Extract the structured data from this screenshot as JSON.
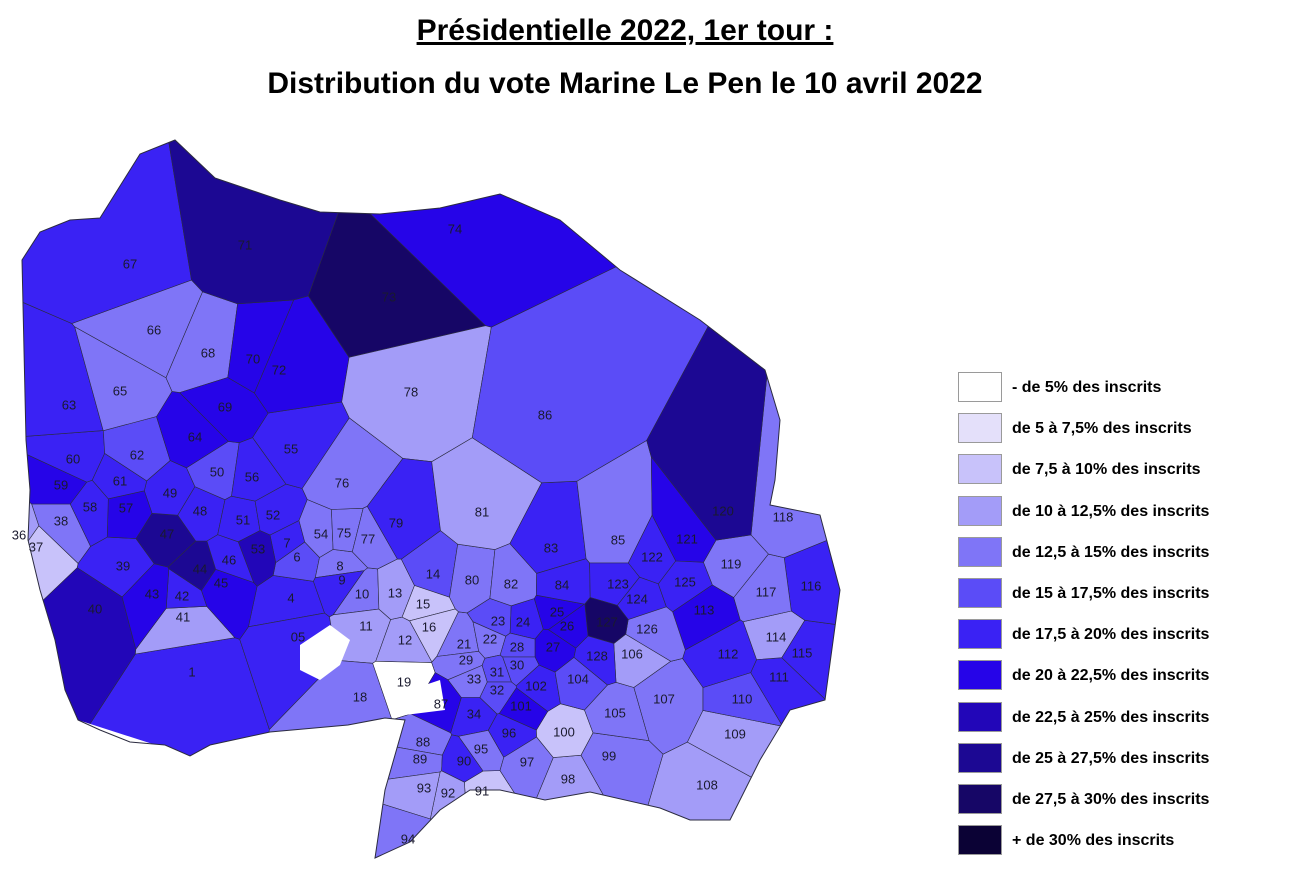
{
  "title": "Présidentielle 2022, 1er tour :",
  "subtitle": "Distribution du vote Marine Le Pen le 10 avril 2022",
  "legend": [
    {
      "label": " - de 5% des inscrits",
      "color": "#ffffff"
    },
    {
      "label": "de 5 à 7,5% des inscrits",
      "color": "#e4e0fa"
    },
    {
      "label": "de 7,5 à 10% des inscrits",
      "color": "#c8c2fa"
    },
    {
      "label": "de 10 à 12,5% des inscrits",
      "color": "#a39cf8"
    },
    {
      "label": "de 12,5 à 15% des inscrits",
      "color": "#7f75f7"
    },
    {
      "label": "de 15 à 17,5% des inscrits",
      "color": "#5b4cf7"
    },
    {
      "label": "de 17,5 à 20% des inscrits",
      "color": "#3a22f4"
    },
    {
      "label": "de 20 à 22,5% des inscrits",
      "color": "#2604e8"
    },
    {
      "label": "de 22,5 à 25% des inscrits",
      "color": "#2206b8"
    },
    {
      "label": "de 25 à 27,5% des inscrits",
      "color": "#1c0893"
    },
    {
      "label": "de 27,5 à 30% des inscrits",
      "color": "#160666"
    },
    {
      "label": "+ de 30% des inscrits",
      "color": "#0b0235"
    }
  ],
  "sectors": [
    {
      "id": "1",
      "cls": 6
    },
    {
      "id": "4",
      "cls": 6
    },
    {
      "id": "05",
      "cls": 6
    },
    {
      "id": "6",
      "cls": 5
    },
    {
      "id": "7",
      "cls": 6
    },
    {
      "id": "8",
      "cls": 4
    },
    {
      "id": "9",
      "cls": 6
    },
    {
      "id": "10",
      "cls": 4
    },
    {
      "id": "11",
      "cls": 3
    },
    {
      "id": "12",
      "cls": 3
    },
    {
      "id": "13",
      "cls": 3
    },
    {
      "id": "14",
      "cls": 5
    },
    {
      "id": "15",
      "cls": 2
    },
    {
      "id": "16",
      "cls": 2
    },
    {
      "id": "18",
      "cls": 4
    },
    {
      "id": "19",
      "cls": 0
    },
    {
      "id": "21",
      "cls": 4
    },
    {
      "id": "22",
      "cls": 4
    },
    {
      "id": "23",
      "cls": 5
    },
    {
      "id": "24",
      "cls": 6
    },
    {
      "id": "25",
      "cls": 7
    },
    {
      "id": "26",
      "cls": 7
    },
    {
      "id": "27",
      "cls": 7
    },
    {
      "id": "28",
      "cls": 5
    },
    {
      "id": "29",
      "cls": 4
    },
    {
      "id": "30",
      "cls": 5
    },
    {
      "id": "31",
      "cls": 5
    },
    {
      "id": "32",
      "cls": 5
    },
    {
      "id": "33",
      "cls": 4
    },
    {
      "id": "34",
      "cls": 6
    },
    {
      "id": "36",
      "cls": 3
    },
    {
      "id": "37",
      "cls": 2
    },
    {
      "id": "38",
      "cls": 4
    },
    {
      "id": "39",
      "cls": 6
    },
    {
      "id": "40",
      "cls": 8
    },
    {
      "id": "41",
      "cls": 3
    },
    {
      "id": "42",
      "cls": 6
    },
    {
      "id": "43",
      "cls": 7
    },
    {
      "id": "44",
      "cls": 9
    },
    {
      "id": "45",
      "cls": 7
    },
    {
      "id": "46",
      "cls": 6
    },
    {
      "id": "47",
      "cls": 9
    },
    {
      "id": "48",
      "cls": 6
    },
    {
      "id": "49",
      "cls": 6
    },
    {
      "id": "50",
      "cls": 5
    },
    {
      "id": "51",
      "cls": 6
    },
    {
      "id": "52",
      "cls": 6
    },
    {
      "id": "53",
      "cls": 8
    },
    {
      "id": "54",
      "cls": 4
    },
    {
      "id": "55",
      "cls": 6
    },
    {
      "id": "56",
      "cls": 6
    },
    {
      "id": "57",
      "cls": 7
    },
    {
      "id": "58",
      "cls": 6
    },
    {
      "id": "59",
      "cls": 7
    },
    {
      "id": "60",
      "cls": 6
    },
    {
      "id": "61",
      "cls": 6
    },
    {
      "id": "62",
      "cls": 5
    },
    {
      "id": "63",
      "cls": 6
    },
    {
      "id": "64",
      "cls": 7
    },
    {
      "id": "65",
      "cls": 4
    },
    {
      "id": "66",
      "cls": 4
    },
    {
      "id": "67",
      "cls": 6
    },
    {
      "id": "68",
      "cls": 4
    },
    {
      "id": "69",
      "cls": 7
    },
    {
      "id": "70",
      "cls": 7
    },
    {
      "id": "71",
      "cls": 9
    },
    {
      "id": "72",
      "cls": 7
    },
    {
      "id": "73",
      "cls": 10
    },
    {
      "id": "74",
      "cls": 7
    },
    {
      "id": "75",
      "cls": 4
    },
    {
      "id": "76",
      "cls": 4
    },
    {
      "id": "77",
      "cls": 4
    },
    {
      "id": "78",
      "cls": 3
    },
    {
      "id": "79",
      "cls": 6
    },
    {
      "id": "80",
      "cls": 4
    },
    {
      "id": "81",
      "cls": 3
    },
    {
      "id": "82",
      "cls": 4
    },
    {
      "id": "83",
      "cls": 6
    },
    {
      "id": "84",
      "cls": 6
    },
    {
      "id": "85",
      "cls": 4
    },
    {
      "id": "86",
      "cls": 5
    },
    {
      "id": "87",
      "cls": 7
    },
    {
      "id": "88",
      "cls": 4
    },
    {
      "id": "89",
      "cls": 4
    },
    {
      "id": "90",
      "cls": 6
    },
    {
      "id": "91",
      "cls": 2
    },
    {
      "id": "92",
      "cls": 3
    },
    {
      "id": "93",
      "cls": 3
    },
    {
      "id": "94",
      "cls": 4
    },
    {
      "id": "95",
      "cls": 4
    },
    {
      "id": "96",
      "cls": 6
    },
    {
      "id": "97",
      "cls": 4
    },
    {
      "id": "98",
      "cls": 3
    },
    {
      "id": "99",
      "cls": 4
    },
    {
      "id": "100",
      "cls": 2
    },
    {
      "id": "101",
      "cls": 7
    },
    {
      "id": "102",
      "cls": 6
    },
    {
      "id": "104",
      "cls": 5
    },
    {
      "id": "105",
      "cls": 4
    },
    {
      "id": "106",
      "cls": 3
    },
    {
      "id": "107",
      "cls": 4
    },
    {
      "id": "108",
      "cls": 3
    },
    {
      "id": "109",
      "cls": 3
    },
    {
      "id": "110",
      "cls": 5
    },
    {
      "id": "111",
      "cls": 6
    },
    {
      "id": "112",
      "cls": 6
    },
    {
      "id": "113",
      "cls": 7
    },
    {
      "id": "114",
      "cls": 3
    },
    {
      "id": "115",
      "cls": 6
    },
    {
      "id": "116",
      "cls": 6
    },
    {
      "id": "117",
      "cls": 4
    },
    {
      "id": "118",
      "cls": 4
    },
    {
      "id": "119",
      "cls": 4
    },
    {
      "id": "120",
      "cls": 9
    },
    {
      "id": "121",
      "cls": 7
    },
    {
      "id": "122",
      "cls": 6
    },
    {
      "id": "123",
      "cls": 6
    },
    {
      "id": "124",
      "cls": 6
    },
    {
      "id": "125",
      "cls": 6
    },
    {
      "id": "126",
      "cls": 4
    },
    {
      "id": "127",
      "cls": 10
    },
    {
      "id": "128",
      "cls": 6
    }
  ]
}
